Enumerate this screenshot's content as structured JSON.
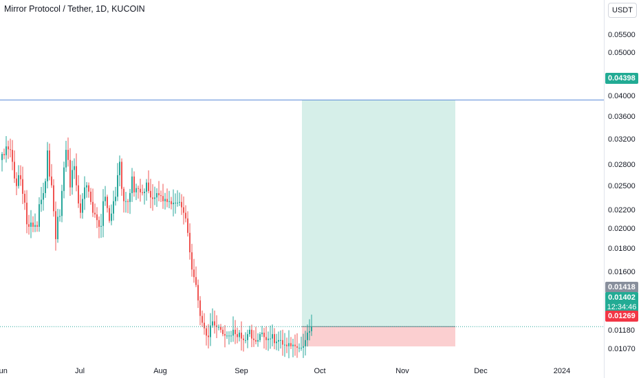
{
  "header": {
    "title": "Mirror Protocol / Tether, 1D, KUCOIN",
    "currency_button": "USDT"
  },
  "price_axis": {
    "ticks": [
      "0.05500",
      "0.05000",
      "0.04000",
      "0.03600",
      "0.03200",
      "0.02800",
      "0.02500",
      "0.02200",
      "0.02000",
      "0.01800",
      "0.01600",
      "0.01180",
      "0.01070"
    ]
  },
  "time_axis": {
    "ticks": [
      "Jun",
      "Jul",
      "Aug",
      "Sep",
      "Oct",
      "Nov",
      "Dec",
      "2024"
    ]
  },
  "labels": {
    "target_price": "0.04398",
    "high_price": "0.01418",
    "last_price": "0.01402",
    "countdown": "12:34:46",
    "stop_price": "0.01269"
  },
  "colors": {
    "up": "#26a69a",
    "down": "#ef5350",
    "target_zone": "#d6efe9",
    "stop_zone": "#fbcfd0",
    "target_line": "#5b8bd8",
    "high_badge": "#888f9c",
    "last_badge": "#22ab94",
    "stop_badge": "#f23645"
  },
  "chart_data": {
    "type": "candlestick",
    "symbol": "Mirror Protocol / Tether",
    "interval": "1D",
    "exchange": "KUCOIN",
    "x_labels": [
      "Jun",
      "Jul",
      "Aug",
      "Sep",
      "Oct",
      "Nov",
      "Dec",
      "2024"
    ],
    "y_scale": "log",
    "ylim": [
      0.0102,
      0.062
    ],
    "position": {
      "entry": 0.01402,
      "target": 0.04398,
      "stop": 0.01269
    },
    "closes": [
      0.0335,
      0.0333,
      0.0348,
      0.0343,
      0.0342,
      0.0322,
      0.0296,
      0.0285,
      0.0301,
      0.0295,
      0.0274,
      0.0262,
      0.0235,
      0.0232,
      0.0237,
      0.0232,
      0.0234,
      0.0232,
      0.026,
      0.0266,
      0.0275,
      0.0292,
      0.0341,
      0.0299,
      0.0286,
      0.0251,
      0.0218,
      0.0244,
      0.0245,
      0.0278,
      0.0313,
      0.0342,
      0.0325,
      0.0283,
      0.0309,
      0.0315,
      0.0286,
      0.0261,
      0.0249,
      0.0267,
      0.0283,
      0.0286,
      0.0277,
      0.0263,
      0.0249,
      0.0247,
      0.024,
      0.0232,
      0.0233,
      0.0264,
      0.027,
      0.0255,
      0.0239,
      0.0248,
      0.0264,
      0.027,
      0.0301,
      0.0322,
      0.0281,
      0.0264,
      0.0264,
      0.0263,
      0.0275,
      0.0299,
      0.0276,
      0.0282,
      0.0281,
      0.0276,
      0.0275,
      0.0277,
      0.029,
      0.0278,
      0.0269,
      0.0267,
      0.0269,
      0.0275,
      0.0272,
      0.0271,
      0.0264,
      0.0267,
      0.0263,
      0.0264,
      0.026,
      0.0262,
      0.0262,
      0.0262,
      0.0263,
      0.0256,
      0.0249,
      0.0242,
      0.0225,
      0.0204,
      0.0187,
      0.018,
      0.0173,
      0.016,
      0.0148,
      0.0143,
      0.0139,
      0.0134,
      0.0133,
      0.0141,
      0.0144,
      0.0141,
      0.014,
      0.014,
      0.0138,
      0.0135,
      0.0134,
      0.0134,
      0.0134,
      0.0134,
      0.0138,
      0.0135,
      0.0133,
      0.0136,
      0.0132,
      0.0131,
      0.0131,
      0.0135,
      0.0138,
      0.0132,
      0.0131,
      0.013,
      0.0131,
      0.0135,
      0.0136,
      0.0133,
      0.0131,
      0.0132,
      0.0132,
      0.0135,
      0.0129,
      0.013,
      0.0131,
      0.0131,
      0.0128,
      0.0128,
      0.0127,
      0.0129,
      0.0127,
      0.0128,
      0.0127,
      0.0126,
      0.0126,
      0.0126,
      0.0127,
      0.0131,
      0.0136,
      0.0137,
      0.01402
    ]
  }
}
